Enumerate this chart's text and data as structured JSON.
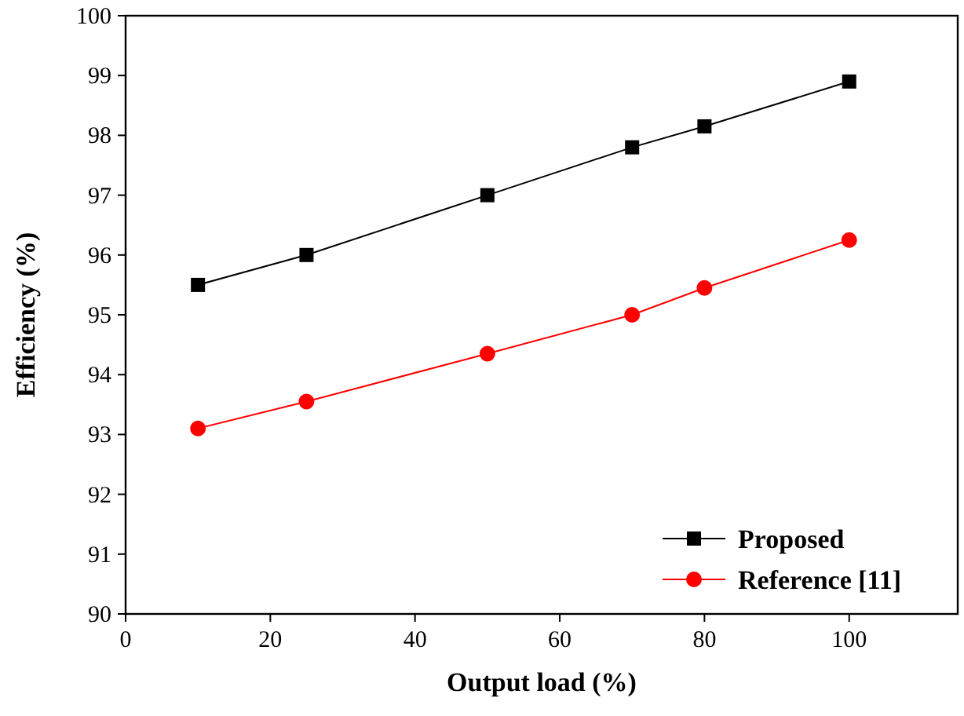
{
  "chart_data": {
    "type": "line",
    "xlabel": "Output load (%)",
    "ylabel": "Efficiency (%)",
    "x": [
      10,
      25,
      50,
      70,
      80,
      100
    ],
    "series": [
      {
        "name": "Proposed",
        "color": "#000000",
        "marker": "square",
        "values": [
          95.5,
          96.0,
          97.0,
          97.8,
          98.15,
          98.9
        ]
      },
      {
        "name": "Reference [11]",
        "color": "#ff0000",
        "marker": "circle",
        "values": [
          93.1,
          93.55,
          94.35,
          95.0,
          95.45,
          96.25
        ]
      }
    ],
    "xlim": [
      0,
      115
    ],
    "xticks": [
      0,
      20,
      40,
      60,
      80,
      100
    ],
    "ylim": [
      90,
      100
    ],
    "yticks": [
      90,
      91,
      92,
      93,
      94,
      95,
      96,
      97,
      98,
      99,
      100
    ],
    "legend": "bottom right",
    "grid": false,
    "line_style": "solid"
  }
}
